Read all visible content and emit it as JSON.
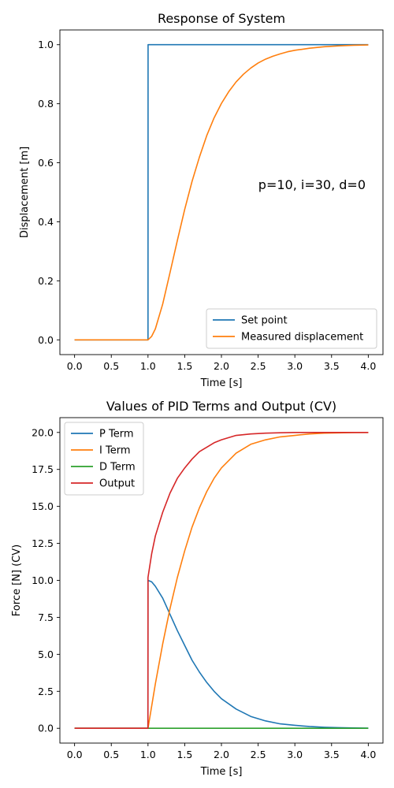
{
  "chart_data": [
    {
      "type": "line",
      "title": "Response of System",
      "xlabel": "Time [s]",
      "ylabel": "Displacement [m]",
      "xlim": [
        -0.2,
        4.2
      ],
      "ylim": [
        -0.05,
        1.05
      ],
      "xticks": [
        0,
        0.5,
        1,
        1.5,
        2,
        2.5,
        3,
        3.5,
        4
      ],
      "xtick_labels": [
        "0.0",
        "0.5",
        "1.0",
        "1.5",
        "2.0",
        "2.5",
        "3.0",
        "3.5",
        "4.0"
      ],
      "yticks": [
        0,
        0.2,
        0.4,
        0.6,
        0.8,
        1.0
      ],
      "ytick_labels": [
        "0.0",
        "0.2",
        "0.4",
        "0.6",
        "0.8",
        "1.0"
      ],
      "grid": false,
      "legend": "lower-right",
      "annotation": "p=10, i=30, d=0",
      "series": [
        {
          "name": "Set point",
          "color": "#1f77b4",
          "x": [
            0,
            0.999,
            1.0,
            1.001,
            4.0
          ],
          "y": [
            0,
            0,
            0,
            1,
            1
          ]
        },
        {
          "name": "Measured displacement",
          "color": "#ff7f0e",
          "x": [
            0,
            0.9,
            1.0,
            1.05,
            1.1,
            1.2,
            1.3,
            1.4,
            1.5,
            1.6,
            1.7,
            1.8,
            1.9,
            2.0,
            2.1,
            2.2,
            2.3,
            2.4,
            2.5,
            2.6,
            2.7,
            2.8,
            2.9,
            3.0,
            3.2,
            3.4,
            3.6,
            3.8,
            4.0
          ],
          "y": [
            0,
            0,
            0,
            0.012,
            0.037,
            0.121,
            0.228,
            0.337,
            0.442,
            0.537,
            0.619,
            0.692,
            0.752,
            0.801,
            0.841,
            0.874,
            0.9,
            0.921,
            0.938,
            0.951,
            0.961,
            0.969,
            0.976,
            0.981,
            0.988,
            0.993,
            0.996,
            0.998,
            0.999
          ]
        }
      ]
    },
    {
      "type": "line",
      "title": "Values of PID Terms and Output (CV)",
      "xlabel": "Time [s]",
      "ylabel": "Force [N] (CV)",
      "xlim": [
        -0.2,
        4.2
      ],
      "ylim": [
        -1.0,
        21.0
      ],
      "xticks": [
        0,
        0.5,
        1,
        1.5,
        2,
        2.5,
        3,
        3.5,
        4
      ],
      "xtick_labels": [
        "0.0",
        "0.5",
        "1.0",
        "1.5",
        "2.0",
        "2.5",
        "3.0",
        "3.5",
        "4.0"
      ],
      "yticks": [
        0,
        2.5,
        5,
        7.5,
        10,
        12.5,
        15,
        17.5,
        20
      ],
      "ytick_labels": [
        "0.0",
        "2.5",
        "5.0",
        "7.5",
        "10.0",
        "12.5",
        "15.0",
        "17.5",
        "20.0"
      ],
      "grid": false,
      "legend": "upper-left",
      "series": [
        {
          "name": "P Term",
          "color": "#1f77b4",
          "x": [
            0,
            0.999,
            1.0,
            1.05,
            1.1,
            1.2,
            1.3,
            1.4,
            1.5,
            1.6,
            1.7,
            1.8,
            1.9,
            2.0,
            2.2,
            2.4,
            2.6,
            2.8,
            3.0,
            3.2,
            3.4,
            3.6,
            3.8,
            4.0
          ],
          "y": [
            0,
            0,
            10,
            9.9,
            9.6,
            8.8,
            7.7,
            6.6,
            5.6,
            4.6,
            3.8,
            3.1,
            2.5,
            2.0,
            1.3,
            0.8,
            0.5,
            0.3,
            0.2,
            0.12,
            0.07,
            0.04,
            0.02,
            0.01
          ]
        },
        {
          "name": "I Term",
          "color": "#ff7f0e",
          "x": [
            0,
            1.0,
            1.05,
            1.1,
            1.2,
            1.3,
            1.4,
            1.5,
            1.6,
            1.7,
            1.8,
            1.9,
            2.0,
            2.2,
            2.4,
            2.6,
            2.8,
            3.0,
            3.2,
            3.4,
            3.6,
            3.8,
            4.0
          ],
          "y": [
            0,
            0,
            1.5,
            3.0,
            5.7,
            8.1,
            10.2,
            12.0,
            13.6,
            14.9,
            16.0,
            16.9,
            17.6,
            18.6,
            19.2,
            19.5,
            19.7,
            19.8,
            19.9,
            19.95,
            19.97,
            19.99,
            20.0
          ]
        },
        {
          "name": "D Term",
          "color": "#2ca02c",
          "x": [
            0,
            4.0
          ],
          "y": [
            0,
            0
          ]
        },
        {
          "name": "Output",
          "color": "#d62728",
          "x": [
            0,
            0.999,
            1.0,
            1.05,
            1.1,
            1.2,
            1.3,
            1.4,
            1.5,
            1.6,
            1.7,
            1.8,
            1.9,
            2.0,
            2.2,
            2.4,
            2.6,
            2.8,
            3.0,
            3.2,
            3.4,
            3.6,
            3.8,
            4.0
          ],
          "y": [
            0,
            0,
            10.2,
            11.8,
            13.0,
            14.6,
            15.9,
            16.9,
            17.6,
            18.2,
            18.7,
            19.0,
            19.3,
            19.5,
            19.8,
            19.9,
            19.95,
            19.98,
            20.0,
            20.0,
            20.0,
            20.0,
            20.0,
            20.0
          ]
        }
      ]
    }
  ]
}
